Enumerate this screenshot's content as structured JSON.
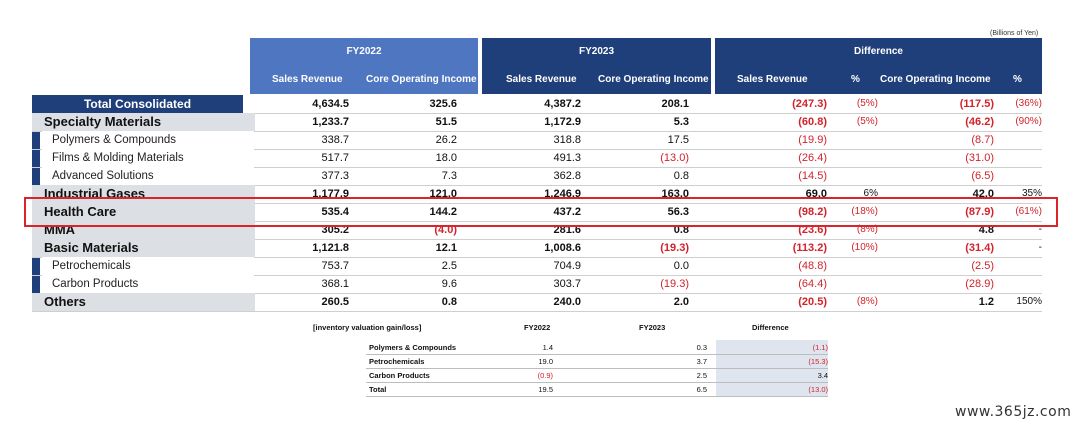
{
  "units": "(Billions of Yen)",
  "groups": [
    {
      "title": "FY2022",
      "col1": "Sales Revenue",
      "col2": "Core Operating Income"
    },
    {
      "title": "FY2023",
      "col1": "Sales Revenue",
      "col2": "Core Operating Income"
    },
    {
      "title": "Difference",
      "col1": "Sales Revenue",
      "col1pct": "%",
      "col2": "Core Operating Income",
      "col2pct": "%"
    }
  ],
  "rows": [
    {
      "label": "Total Consolidated",
      "type": "total",
      "v": [
        "4,634.5",
        "325.6",
        "4,387.2",
        "208.1",
        "(247.3)",
        "(5%)",
        "(117.5)",
        "(36%)"
      ]
    },
    {
      "label": "Specialty Materials",
      "type": "seg",
      "v": [
        "1,233.7",
        "51.5",
        "1,172.9",
        "5.3",
        "(60.8)",
        "(5%)",
        "(46.2)",
        "(90%)"
      ]
    },
    {
      "label": "Polymers & Compounds",
      "type": "sub",
      "v": [
        "338.7",
        "26.2",
        "318.8",
        "17.5",
        "(19.9)",
        "",
        "(8.7)",
        ""
      ]
    },
    {
      "label": "Films & Molding Materials",
      "type": "sub",
      "v": [
        "517.7",
        "18.0",
        "491.3",
        "(13.0)",
        "(26.4)",
        "",
        "(31.0)",
        ""
      ]
    },
    {
      "label": "Advanced Solutions",
      "type": "sub",
      "v": [
        "377.3",
        "7.3",
        "362.8",
        "0.8",
        "(14.5)",
        "",
        "(6.5)",
        ""
      ]
    },
    {
      "label": "Industrial Gases",
      "type": "seg",
      "v": [
        "1,177.9",
        "121.0",
        "1,246.9",
        "163.0",
        "69.0",
        "6%",
        "42.0",
        "35%"
      ]
    },
    {
      "label": "Health Care",
      "type": "seg",
      "v": [
        "535.4",
        "144.2",
        "437.2",
        "56.3",
        "(98.2)",
        "(18%)",
        "(87.9)",
        "(61%)"
      ]
    },
    {
      "label": "MMA",
      "type": "seg",
      "v": [
        "305.2",
        "(4.0)",
        "281.6",
        "0.8",
        "(23.6)",
        "(8%)",
        "4.8",
        "-"
      ]
    },
    {
      "label": "Basic Materials",
      "type": "seg",
      "v": [
        "1,121.8",
        "12.1",
        "1,008.6",
        "(19.3)",
        "(113.2)",
        "(10%)",
        "(31.4)",
        "-"
      ]
    },
    {
      "label": "Petrochemicals",
      "type": "sub",
      "v": [
        "753.7",
        "2.5",
        "704.9",
        "0.0",
        "(48.8)",
        "",
        "(2.5)",
        ""
      ]
    },
    {
      "label": "Carbon Products",
      "type": "sub",
      "v": [
        "368.1",
        "9.6",
        "303.7",
        "(19.3)",
        "(64.4)",
        "",
        "(28.9)",
        ""
      ]
    },
    {
      "label": "Others",
      "type": "seg",
      "v": [
        "260.5",
        "0.8",
        "240.0",
        "2.0",
        "(20.5)",
        "(8%)",
        "1.2",
        "150%"
      ]
    }
  ],
  "inventory": {
    "title": "[inventory valuation gain/loss]",
    "headers": [
      "FY2022",
      "FY2023",
      "Difference"
    ],
    "rows": [
      {
        "label": "Polymers & Compounds",
        "v": [
          "1.4",
          "0.3",
          "(1.1)"
        ]
      },
      {
        "label": "Petrochemicals",
        "v": [
          "19.0",
          "3.7",
          "(15.3)"
        ]
      },
      {
        "label": "Carbon Products",
        "v": [
          "(0.9)",
          "2.5",
          "3.4"
        ]
      },
      {
        "label": "Total",
        "v": [
          "19.5",
          "6.5",
          "(13.0)"
        ]
      }
    ]
  },
  "watermark": "www.365jz.com"
}
